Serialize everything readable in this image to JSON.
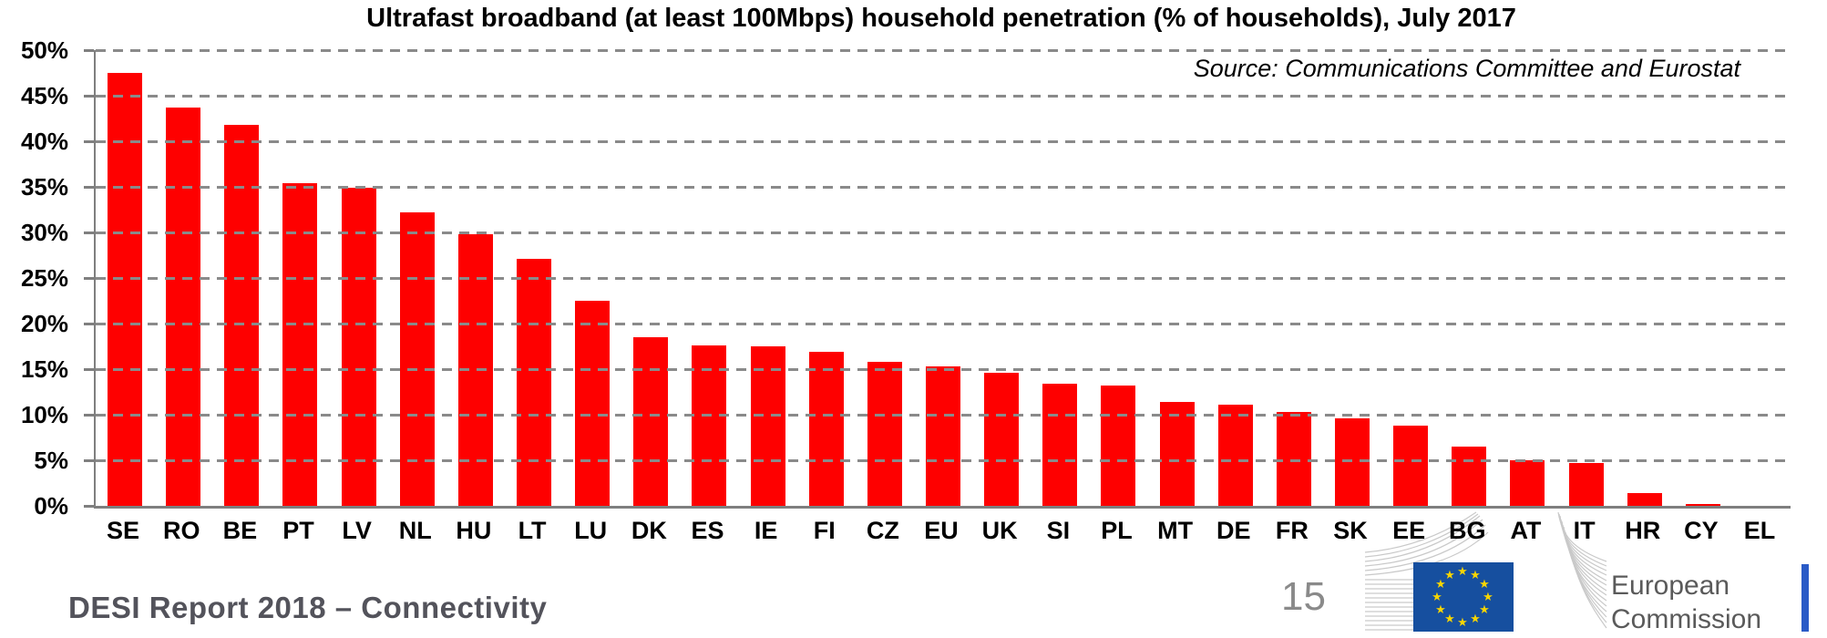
{
  "chart": {
    "title": "Ultrafast broadband (at least 100Mbps) household penetration (% of households), July 2017",
    "source": "Source: Communications Committee and Eurostat"
  },
  "chart_data": {
    "type": "bar",
    "title": "Ultrafast broadband (at least 100Mbps) household penetration (% of households), July 2017",
    "source": "Source: Communications Committee and Eurostat",
    "categories": [
      "SE",
      "RO",
      "BE",
      "PT",
      "LV",
      "NL",
      "HU",
      "LT",
      "LU",
      "DK",
      "ES",
      "IE",
      "FI",
      "CZ",
      "EU",
      "UK",
      "SI",
      "PL",
      "MT",
      "DE",
      "FR",
      "SK",
      "EE",
      "BG",
      "AT",
      "IT",
      "HR",
      "CY",
      "EL"
    ],
    "values": [
      47.5,
      43.7,
      41.8,
      35.4,
      34.9,
      32.2,
      29.8,
      27.1,
      22.5,
      18.5,
      17.6,
      17.5,
      16.9,
      15.8,
      15.3,
      14.6,
      13.4,
      13.2,
      11.4,
      11.1,
      10.3,
      9.6,
      8.8,
      6.5,
      5.0,
      4.7,
      1.4,
      0.2,
      0.0
    ],
    "unit": "%",
    "xlabel": "",
    "ylabel": "",
    "ylim": [
      0,
      50
    ],
    "ytick_step": 5,
    "ytick_labels": [
      "0%",
      "5%",
      "10%",
      "15%",
      "20%",
      "25%",
      "30%",
      "35%",
      "40%",
      "45%",
      "50%"
    ],
    "grid": "horizontal-dashed",
    "legend": "none",
    "bar_color": "#fe0000"
  },
  "footer": {
    "report_label": "DESI Report 2018 – Connectivity",
    "page_number": "15",
    "ec_logo": {
      "line1": "European",
      "line2": "Commission"
    }
  },
  "colors": {
    "bar_red": "#fe0000",
    "gridline_gray": "#8a8a8a",
    "axis_gray": "#7f7f7f",
    "flag_blue": "#164f9f",
    "star_yellow": "#f8d500",
    "ec_bar_blue": "#2a5bc7",
    "footer_text_gray": "#53535b",
    "wordmark_gray": "#5a5a5a",
    "swoosh_gray": "#c9c9c9"
  }
}
